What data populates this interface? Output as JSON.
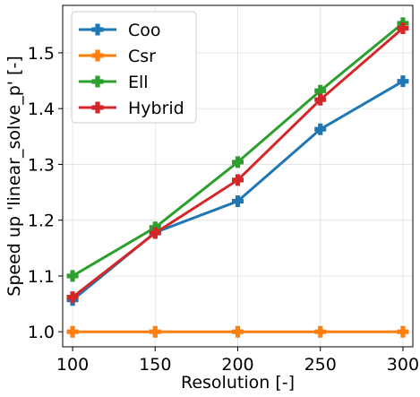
{
  "chart_data": {
    "type": "line",
    "xlabel": "Resolution [-]",
    "ylabel": "Speed up 'linear_solve_p' [-]",
    "x": [
      100,
      150,
      200,
      250,
      300
    ],
    "xticks": [
      "100",
      "150",
      "200",
      "250",
      "300"
    ],
    "yticks": [
      "1.0",
      "1.1",
      "1.2",
      "1.3",
      "1.4",
      "1.5"
    ],
    "xlim": [
      94,
      306
    ],
    "ylim": [
      0.973,
      1.585
    ],
    "grid": true,
    "legend_position": "top-left",
    "marker": "plus-filled",
    "series": [
      {
        "name": "Coo",
        "color": "#1f77b4",
        "values": [
          1.057,
          1.178,
          1.234,
          1.363,
          1.449
        ]
      },
      {
        "name": "Csr",
        "color": "#ff7f0e",
        "values": [
          1.0,
          1.0,
          1.0,
          1.0,
          1.0
        ]
      },
      {
        "name": "Ell",
        "color": "#2ca02c",
        "values": [
          1.1,
          1.187,
          1.304,
          1.432,
          1.553
        ]
      },
      {
        "name": "Hybrid",
        "color": "#d62728",
        "values": [
          1.062,
          1.177,
          1.272,
          1.416,
          1.544
        ]
      }
    ]
  }
}
